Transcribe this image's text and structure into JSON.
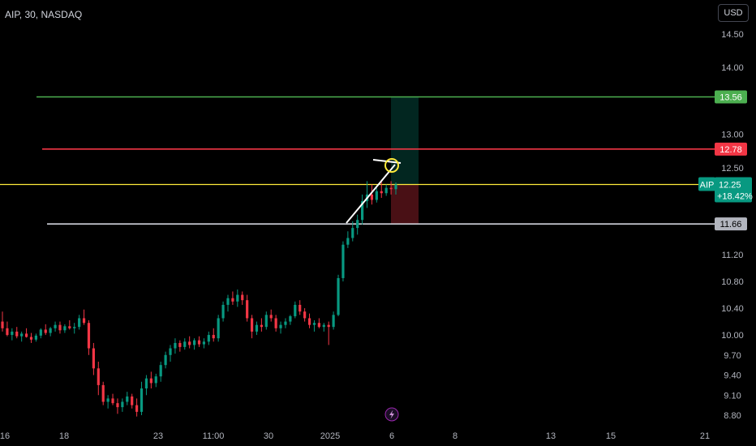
{
  "header": {
    "symbol": "AIP, 30, NASDAQ",
    "currency": "USD"
  },
  "chart_data": {
    "type": "candlestick",
    "ylim": [
      8.7,
      14.8
    ],
    "y_ticks": [
      {
        "value": 14.5,
        "label": "14.50"
      },
      {
        "value": 14.0,
        "label": "14.00"
      },
      {
        "value": 13.0,
        "label": "13.00"
      },
      {
        "value": 12.5,
        "label": "12.50"
      },
      {
        "value": 11.2,
        "label": "11.20"
      },
      {
        "value": 10.8,
        "label": "10.80"
      },
      {
        "value": 10.4,
        "label": "10.40"
      },
      {
        "value": 10.0,
        "label": "10.00"
      },
      {
        "value": 9.7,
        "label": "9.70"
      },
      {
        "value": 9.4,
        "label": "9.40"
      },
      {
        "value": 9.1,
        "label": "9.10"
      },
      {
        "value": 8.8,
        "label": "8.80"
      }
    ],
    "x_ticks": [
      "16",
      "18",
      "23",
      "11:00",
      "30",
      "2025",
      "6",
      "8",
      "13",
      "15",
      "21"
    ],
    "horizontal_lines": [
      {
        "value": 13.56,
        "label": "13.56",
        "color": "#4caf50"
      },
      {
        "value": 12.78,
        "label": "12.78",
        "color": "#f23645"
      },
      {
        "value": 12.25,
        "label": "12.25",
        "color": "#ffeb3b"
      },
      {
        "value": 11.66,
        "label": "11.66",
        "color": "#d1d4dc"
      }
    ],
    "current_price": {
      "symbol": "AIP",
      "value": 12.25,
      "change": "+18.42%",
      "color": "#089981"
    },
    "long_position": {
      "entry": 12.25,
      "target": 13.56,
      "stop": 11.66
    },
    "up_color": "#089981",
    "down_color": "#f23645",
    "candles": [
      [
        10.2,
        10.35,
        10.05,
        10.1
      ],
      [
        10.1,
        10.2,
        9.98,
        10.0
      ],
      [
        10.0,
        10.1,
        9.92,
        10.05
      ],
      [
        10.05,
        10.12,
        9.95,
        9.98
      ],
      [
        9.98,
        10.05,
        9.9,
        10.02
      ],
      [
        10.02,
        10.1,
        9.96,
        9.97
      ],
      [
        9.97,
        10.03,
        9.88,
        9.93
      ],
      [
        9.93,
        10.02,
        9.9,
        9.99
      ],
      [
        9.99,
        10.1,
        9.95,
        10.08
      ],
      [
        10.08,
        10.16,
        10.0,
        10.03
      ],
      [
        10.03,
        10.12,
        9.98,
        10.1
      ],
      [
        10.1,
        10.2,
        10.05,
        10.15
      ],
      [
        10.15,
        10.2,
        10.02,
        10.07
      ],
      [
        10.07,
        10.16,
        10.03,
        10.13
      ],
      [
        10.13,
        10.22,
        10.08,
        10.1
      ],
      [
        10.1,
        10.18,
        10.02,
        10.12
      ],
      [
        10.12,
        10.3,
        10.08,
        10.25
      ],
      [
        10.25,
        10.38,
        10.15,
        10.18
      ],
      [
        10.18,
        10.22,
        9.7,
        9.8
      ],
      [
        9.8,
        9.88,
        9.4,
        9.5
      ],
      [
        9.5,
        9.6,
        9.1,
        9.25
      ],
      [
        9.25,
        9.3,
        8.95,
        9.0
      ],
      [
        9.0,
        9.1,
        8.9,
        9.05
      ],
      [
        9.05,
        9.12,
        8.95,
        8.98
      ],
      [
        8.98,
        9.05,
        8.82,
        8.92
      ],
      [
        8.92,
        9.05,
        8.85,
        9.0
      ],
      [
        9.0,
        9.15,
        8.95,
        9.08
      ],
      [
        9.08,
        9.12,
        8.9,
        8.95
      ],
      [
        8.95,
        9.05,
        8.78,
        8.85
      ],
      [
        8.85,
        9.3,
        8.8,
        9.2
      ],
      [
        9.2,
        9.4,
        9.1,
        9.35
      ],
      [
        9.35,
        9.45,
        9.2,
        9.28
      ],
      [
        9.28,
        9.42,
        9.22,
        9.38
      ],
      [
        9.38,
        9.6,
        9.3,
        9.55
      ],
      [
        9.55,
        9.75,
        9.5,
        9.7
      ],
      [
        9.7,
        9.85,
        9.6,
        9.8
      ],
      [
        9.8,
        9.95,
        9.72,
        9.88
      ],
      [
        9.88,
        9.92,
        9.75,
        9.82
      ],
      [
        9.82,
        9.95,
        9.78,
        9.9
      ],
      [
        9.9,
        9.98,
        9.8,
        9.85
      ],
      [
        9.85,
        9.95,
        9.78,
        9.92
      ],
      [
        9.92,
        9.98,
        9.82,
        9.86
      ],
      [
        9.86,
        9.95,
        9.8,
        9.9
      ],
      [
        9.9,
        10.05,
        9.85,
        10.0
      ],
      [
        10.0,
        10.1,
        9.9,
        9.95
      ],
      [
        9.95,
        10.3,
        9.9,
        10.25
      ],
      [
        10.25,
        10.5,
        10.2,
        10.45
      ],
      [
        10.45,
        10.6,
        10.35,
        10.55
      ],
      [
        10.55,
        10.65,
        10.45,
        10.5
      ],
      [
        10.5,
        10.68,
        10.42,
        10.6
      ],
      [
        10.6,
        10.65,
        10.45,
        10.52
      ],
      [
        10.52,
        10.6,
        10.2,
        10.25
      ],
      [
        10.25,
        10.3,
        9.95,
        10.05
      ],
      [
        10.05,
        10.2,
        10.0,
        10.15
      ],
      [
        10.15,
        10.25,
        10.05,
        10.12
      ],
      [
        10.12,
        10.35,
        10.08,
        10.3
      ],
      [
        10.3,
        10.38,
        10.2,
        10.25
      ],
      [
        10.25,
        10.3,
        10.05,
        10.1
      ],
      [
        10.1,
        10.2,
        10.02,
        10.15
      ],
      [
        10.15,
        10.25,
        10.1,
        10.2
      ],
      [
        10.2,
        10.3,
        10.15,
        10.28
      ],
      [
        10.28,
        10.5,
        10.25,
        10.45
      ],
      [
        10.45,
        10.52,
        10.3,
        10.35
      ],
      [
        10.35,
        10.4,
        10.2,
        10.25
      ],
      [
        10.25,
        10.32,
        10.1,
        10.15
      ],
      [
        10.15,
        10.22,
        10.05,
        10.18
      ],
      [
        10.18,
        10.25,
        10.1,
        10.12
      ],
      [
        10.12,
        10.18,
        10.05,
        10.15
      ],
      [
        10.15,
        10.2,
        9.85,
        10.12
      ],
      [
        10.12,
        10.35,
        10.08,
        10.3
      ],
      [
        10.3,
        10.9,
        10.28,
        10.85
      ],
      [
        10.85,
        11.4,
        10.8,
        11.35
      ],
      [
        11.35,
        11.55,
        11.3,
        11.45
      ],
      [
        11.45,
        11.7,
        11.4,
        11.6
      ],
      [
        11.6,
        11.8,
        11.5,
        11.72
      ],
      [
        11.72,
        12.1,
        11.65,
        12.0
      ],
      [
        12.0,
        12.3,
        11.9,
        12.1
      ],
      [
        12.1,
        12.25,
        11.95,
        12.02
      ],
      [
        12.02,
        12.2,
        11.98,
        12.15
      ],
      [
        12.15,
        12.3,
        12.05,
        12.12
      ],
      [
        12.12,
        12.25,
        12.08,
        12.2
      ],
      [
        12.2,
        12.3,
        12.1,
        12.18
      ],
      [
        12.18,
        12.28,
        12.1,
        12.25
      ]
    ]
  }
}
